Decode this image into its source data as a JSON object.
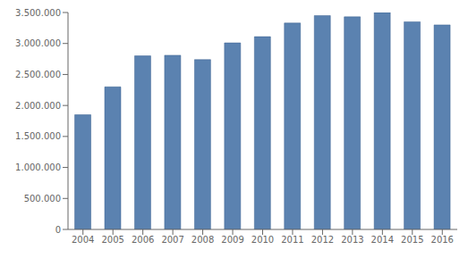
{
  "chart_data": {
    "type": "bar",
    "categories": [
      "2004",
      "2005",
      "2006",
      "2007",
      "2008",
      "2009",
      "2010",
      "2011",
      "2012",
      "2013",
      "2014",
      "2015",
      "2016"
    ],
    "values": [
      1850000,
      2300000,
      2800000,
      2810000,
      2740000,
      3010000,
      3110000,
      3330000,
      3450000,
      3430000,
      3500000,
      3350000,
      3300000
    ],
    "color": "#5b82b0",
    "ylim": [
      0,
      3500000
    ],
    "yticks": [
      0,
      {
        "value": 500000,
        "label": "500.000"
      },
      {
        "value": 1000000,
        "label": "1.000.000"
      },
      {
        "value": 1500000,
        "label": "1.500.000"
      },
      {
        "value": 2000000,
        "label": "2.000.000"
      },
      {
        "value": 2500000,
        "label": "2.500.000"
      },
      {
        "value": 3000000,
        "label": "3.000.000"
      },
      {
        "value": 3500000,
        "label": "3.500.000"
      }
    ],
    "grid": false
  }
}
